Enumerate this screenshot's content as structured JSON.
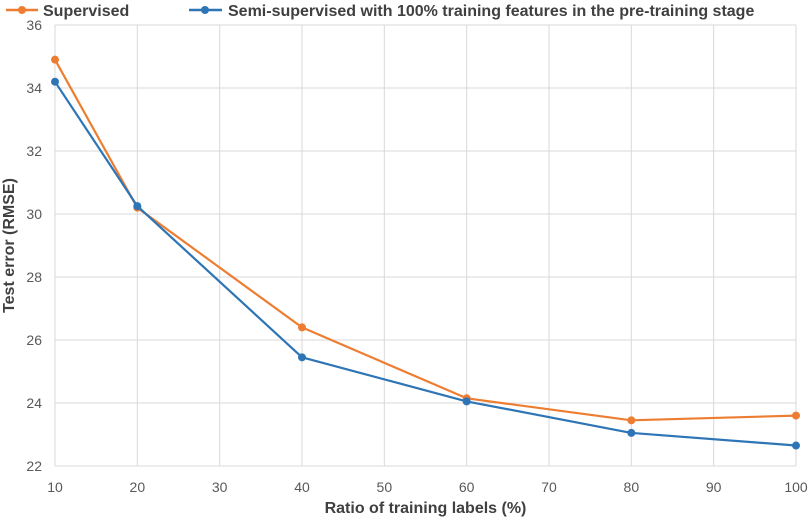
{
  "chart_data": {
    "type": "line",
    "title": "",
    "xlabel": "Ratio of training labels (%)",
    "ylabel": "Test error (RMSE)",
    "xlim": [
      10,
      100
    ],
    "ylim": [
      22,
      36
    ],
    "x_ticks": [
      10,
      20,
      30,
      40,
      50,
      60,
      70,
      80,
      90,
      100
    ],
    "y_ticks": [
      22,
      24,
      26,
      28,
      30,
      32,
      34,
      36
    ],
    "grid": true,
    "legend_position": "top",
    "series": [
      {
        "name": "Supervised",
        "color": "#ED7D31",
        "x": [
          10,
          20,
          40,
          60,
          80,
          100
        ],
        "y": [
          34.9,
          30.2,
          26.4,
          24.15,
          23.45,
          23.6
        ]
      },
      {
        "name": "Semi-supervised with 100% training features in the pre-training stage",
        "color": "#2E75B6",
        "x": [
          10,
          20,
          40,
          60,
          80,
          100
        ],
        "y": [
          34.2,
          30.25,
          25.45,
          24.05,
          23.05,
          22.65
        ]
      }
    ]
  }
}
